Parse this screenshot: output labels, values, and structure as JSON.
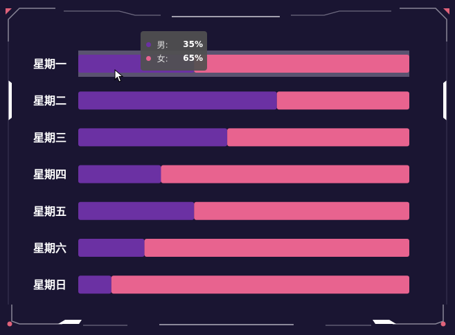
{
  "chart_data": {
    "type": "bar",
    "orientation": "horizontal",
    "stacked": true,
    "categories": [
      "星期一",
      "星期二",
      "星期三",
      "星期四",
      "星期五",
      "星期六",
      "星期日"
    ],
    "series": [
      {
        "name": "男",
        "color": "#6b31a3",
        "values": [
          35,
          60,
          45,
          25,
          35,
          20,
          10
        ]
      },
      {
        "name": "女",
        "color": "#e8638f",
        "values": [
          65,
          40,
          55,
          75,
          65,
          80,
          90
        ]
      }
    ],
    "xlim": [
      0,
      100
    ],
    "grid": false,
    "legend": "none",
    "highlighted_category": 0
  },
  "tooltip": {
    "rows": [
      {
        "name": "男:",
        "value": "35%",
        "color": "#6b31a3"
      },
      {
        "name": "女:",
        "value": "65%",
        "color": "#e8638f"
      }
    ]
  },
  "theme": {
    "background": "#1a1532",
    "frame": "#8a8798",
    "corner_accent": "#e0627a",
    "highlight": "#5a5370"
  }
}
